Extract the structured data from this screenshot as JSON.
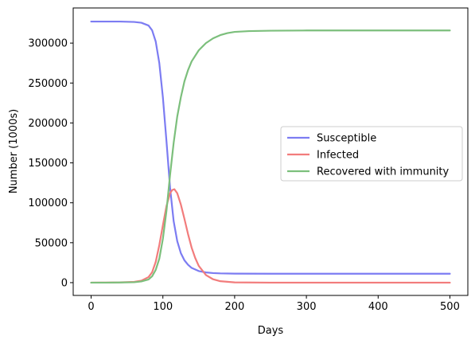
{
  "chart_data": {
    "type": "line",
    "xlabel": "Days",
    "ylabel": "Number (1000s)",
    "xlim": [
      -25,
      525
    ],
    "ylim": [
      -16000,
      344000
    ],
    "xticks": [
      0,
      100,
      200,
      300,
      400,
      500
    ],
    "yticks": [
      0,
      50000,
      100000,
      150000,
      200000,
      250000,
      300000
    ],
    "grid": false,
    "legend_position": "center-right",
    "series": [
      {
        "name": "Susceptible",
        "color": "#7c7cf2",
        "x": [
          0,
          20,
          40,
          60,
          70,
          80,
          85,
          90,
          95,
          100,
          105,
          110,
          115,
          120,
          125,
          130,
          135,
          140,
          150,
          160,
          170,
          180,
          200,
          250,
          300,
          400,
          500
        ],
        "y": [
          327000,
          327000,
          327000,
          326500,
          325500,
          322000,
          316000,
          302000,
          275000,
          232000,
          177000,
          119000,
          77000,
          52000,
          37000,
          28000,
          22500,
          18500,
          14500,
          12800,
          12000,
          11600,
          11300,
          11200,
          11200,
          11200,
          11200
        ]
      },
      {
        "name": "Infected",
        "color": "#f27c7c",
        "x": [
          0,
          20,
          40,
          60,
          70,
          80,
          85,
          90,
          95,
          100,
          105,
          110,
          113,
          116,
          120,
          125,
          130,
          135,
          140,
          145,
          150,
          160,
          170,
          180,
          200,
          250,
          300,
          400,
          500
        ],
        "y": [
          0,
          100,
          300,
          1000,
          2500,
          7000,
          13000,
          26000,
          47000,
          72000,
          96000,
          112000,
          116000,
          117000,
          112000,
          98000,
          80000,
          61000,
          44000,
          31000,
          21000,
          9500,
          4200,
          1800,
          300,
          0,
          0,
          0,
          0
        ]
      },
      {
        "name": "Recovered with immunity",
        "color": "#7cbf7c",
        "x": [
          0,
          20,
          40,
          60,
          70,
          80,
          85,
          90,
          95,
          100,
          105,
          110,
          115,
          120,
          125,
          130,
          135,
          140,
          150,
          160,
          170,
          180,
          190,
          200,
          220,
          250,
          300,
          400,
          500
        ],
        "y": [
          0,
          0,
          200,
          500,
          1500,
          4000,
          8000,
          16000,
          30000,
          55000,
          90000,
          135000,
          175000,
          208000,
          232000,
          252000,
          266000,
          277000,
          291000,
          300000,
          306000,
          310000,
          312500,
          314000,
          315000,
          315500,
          315800,
          315800,
          315800
        ]
      }
    ]
  }
}
